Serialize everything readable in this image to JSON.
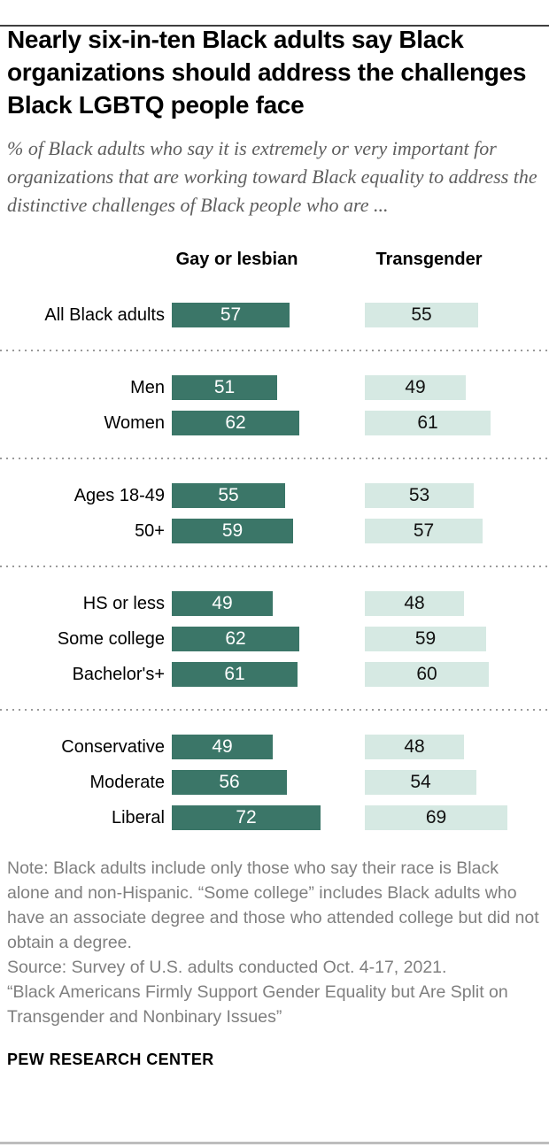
{
  "meta": {
    "title": "Nearly six-in-ten Black adults say Black organizations should address the challenges Black LGBTQ people face",
    "subtitle": "% of Black adults who say it is extremely or very important for organizations that are working toward Black equality to address the distinctive challenges of Black people who are ...",
    "note": "Note: Black adults include only those who say their race is Black alone and non-Hispanic. “Some college” includes Black adults who have an associate degree and those who attended college but did not obtain a degree.",
    "source": "Source: Survey of U.S. adults conducted Oct. 4-17, 2021.",
    "report": "“Black Americans Firmly Support Gender Equality but Are Split on Transgender and Nonbinary Issues”",
    "brand": "PEW RESEARCH CENTER"
  },
  "chart_data": {
    "type": "bar",
    "orientation": "horizontal",
    "title": "Nearly six-in-ten Black adults say Black organizations should address the challenges Black LGBTQ people face",
    "xlabel": "",
    "ylabel": "",
    "xlim": [
      0,
      100
    ],
    "grid": false,
    "legend_position": "column-headers-top",
    "series_headers": [
      "Gay or lesbian",
      "Transgender"
    ],
    "categories": [
      "All Black adults",
      "Men",
      "Women",
      "Ages 18-49",
      "50+",
      "HS or less",
      "Some college",
      "Bachelor's+",
      "Conservative",
      "Moderate",
      "Liberal"
    ],
    "series": [
      {
        "name": "Gay or lesbian",
        "values": [
          57,
          51,
          62,
          55,
          59,
          49,
          62,
          61,
          49,
          56,
          72
        ]
      },
      {
        "name": "Transgender",
        "values": [
          55,
          49,
          61,
          53,
          57,
          48,
          59,
          60,
          48,
          54,
          69
        ]
      }
    ],
    "groups": [
      {
        "rows": [
          {
            "label": "All Black adults",
            "values": [
              57,
              55
            ]
          }
        ]
      },
      {
        "rows": [
          {
            "label": "Men",
            "values": [
              51,
              49
            ]
          },
          {
            "label": "Women",
            "values": [
              62,
              61
            ]
          }
        ]
      },
      {
        "rows": [
          {
            "label": "Ages 18-49",
            "values": [
              55,
              53
            ]
          },
          {
            "label": "50+",
            "values": [
              59,
              57
            ]
          }
        ]
      },
      {
        "rows": [
          {
            "label": "HS or less",
            "values": [
              49,
              48
            ]
          },
          {
            "label": "Some college",
            "values": [
              62,
              59
            ]
          },
          {
            "label": "Bachelor's+",
            "values": [
              61,
              60
            ]
          }
        ]
      },
      {
        "rows": [
          {
            "label": "Conservative",
            "values": [
              49,
              48
            ]
          },
          {
            "label": "Moderate",
            "values": [
              56,
              54
            ]
          },
          {
            "label": "Liberal",
            "values": [
              72,
              69
            ]
          }
        ]
      }
    ],
    "colors": {
      "gay_or_lesbian": "#3b7668",
      "transgender": "#d6e9e3",
      "dark_bar_text": "#ffffff",
      "light_bar_text": "#111111"
    }
  }
}
